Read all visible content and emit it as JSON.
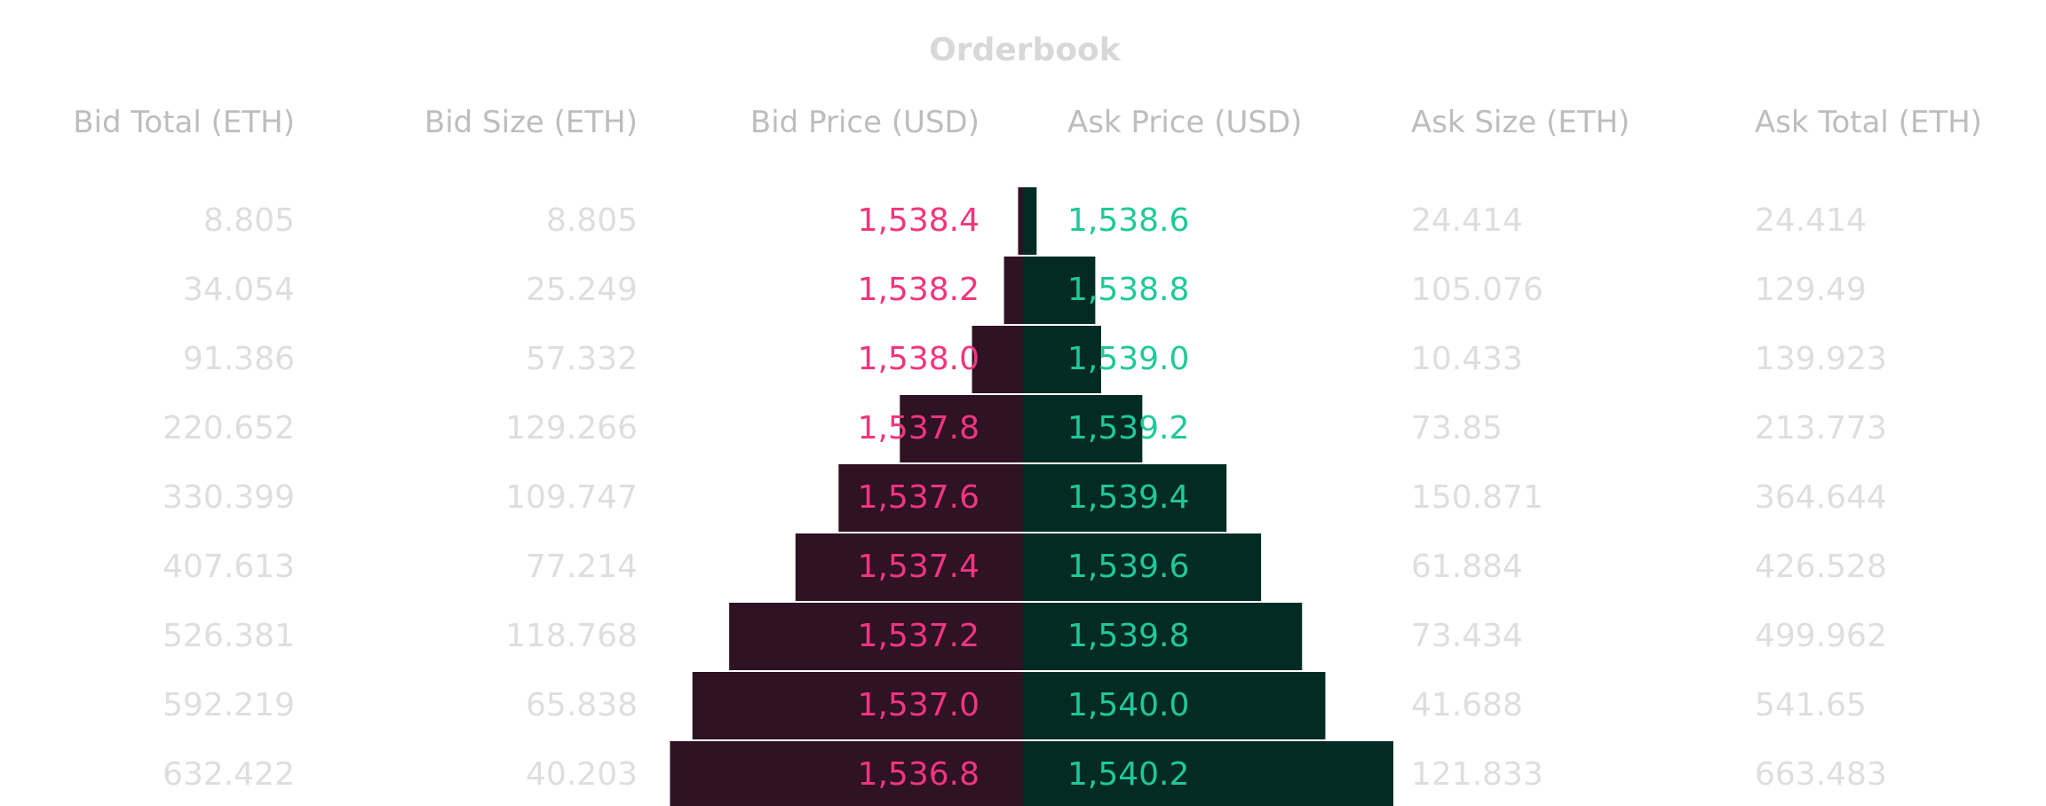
{
  "title": "Orderbook",
  "columns": {
    "bid_total": "Bid Total (ETH)",
    "bid_size": "Bid Size (ETH)",
    "bid_price": "Bid Price (USD)",
    "ask_price": "Ask Price (USD)",
    "ask_size": "Ask Size (ETH)",
    "ask_total": "Ask Total (ETH)"
  },
  "colors": {
    "bid_text": "#f2357f",
    "ask_text": "#1fc89b",
    "bid_bar": "#2f1224",
    "ask_bar": "#022c23",
    "muted_text": "#dedede",
    "header_text": "#bdbdbd"
  },
  "chart_data": {
    "type": "bar",
    "subtype": "orderbook-depth",
    "title": "Orderbook",
    "orientation": "horizontal-mirrored",
    "bids": [
      {
        "total": 8.805,
        "size": 8.805,
        "price": 1538.4,
        "price_label": "1,538.4",
        "total_label": "8.805",
        "size_label": "8.805"
      },
      {
        "total": 34.054,
        "size": 25.249,
        "price": 1538.2,
        "price_label": "1,538.2",
        "total_label": "34.054",
        "size_label": "25.249"
      },
      {
        "total": 91.386,
        "size": 57.332,
        "price": 1538.0,
        "price_label": "1,538.0",
        "total_label": "91.386",
        "size_label": "57.332"
      },
      {
        "total": 220.652,
        "size": 129.266,
        "price": 1537.8,
        "price_label": "1,537.8",
        "total_label": "220.652",
        "size_label": "129.266"
      },
      {
        "total": 330.399,
        "size": 109.747,
        "price": 1537.6,
        "price_label": "1,537.6",
        "total_label": "330.399",
        "size_label": "109.747"
      },
      {
        "total": 407.613,
        "size": 77.214,
        "price": 1537.4,
        "price_label": "1,537.4",
        "total_label": "407.613",
        "size_label": "77.214"
      },
      {
        "total": 526.381,
        "size": 118.768,
        "price": 1537.2,
        "price_label": "1,537.2",
        "total_label": "526.381",
        "size_label": "118.768"
      },
      {
        "total": 592.219,
        "size": 65.838,
        "price": 1537.0,
        "price_label": "1,537.0",
        "total_label": "592.219",
        "size_label": "65.838"
      },
      {
        "total": 632.422,
        "size": 40.203,
        "price": 1536.8,
        "price_label": "1,536.8",
        "total_label": "632.422",
        "size_label": "40.203"
      }
    ],
    "asks": [
      {
        "total": 24.414,
        "size": 24.414,
        "price": 1538.6,
        "price_label": "1,538.6",
        "total_label": "24.414",
        "size_label": "24.414"
      },
      {
        "total": 129.49,
        "size": 105.076,
        "price": 1538.8,
        "price_label": "1,538.8",
        "total_label": "129.49",
        "size_label": "105.076"
      },
      {
        "total": 139.923,
        "size": 10.433,
        "price": 1539.0,
        "price_label": "1,539.0",
        "total_label": "139.923",
        "size_label": "10.433"
      },
      {
        "total": 213.773,
        "size": 73.85,
        "price": 1539.2,
        "price_label": "1,539.2",
        "total_label": "213.773",
        "size_label": "73.85"
      },
      {
        "total": 364.644,
        "size": 150.871,
        "price": 1539.4,
        "price_label": "1,539.4",
        "total_label": "364.644",
        "size_label": "150.871"
      },
      {
        "total": 426.528,
        "size": 61.884,
        "price": 1539.6,
        "price_label": "1,539.6",
        "total_label": "426.528",
        "size_label": "61.884"
      },
      {
        "total": 499.962,
        "size": 73.434,
        "price": 1539.8,
        "price_label": "1,539.8",
        "total_label": "499.962",
        "size_label": "73.434"
      },
      {
        "total": 541.65,
        "size": 41.688,
        "price": 1540.0,
        "price_label": "1,540.0",
        "total_label": "541.65",
        "size_label": "41.688"
      },
      {
        "total": 663.483,
        "size": 121.833,
        "price": 1540.2,
        "price_label": "1,540.2",
        "total_label": "663.483",
        "size_label": "121.833"
      }
    ],
    "bar_value": "total",
    "xlim": [
      0,
      700
    ],
    "grid": false,
    "legend": "none"
  }
}
